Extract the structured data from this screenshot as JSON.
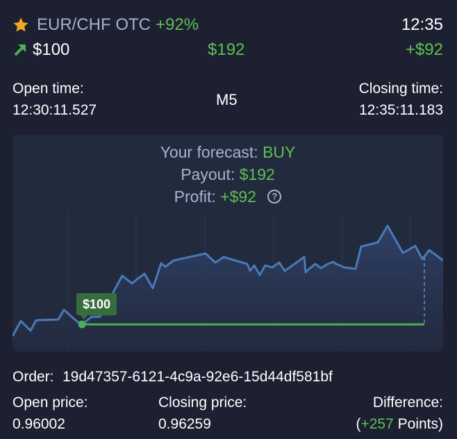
{
  "header": {
    "pair": "EUR/CHF OTC",
    "payout_pct": "+92%",
    "time": "12:35",
    "amount": "$100",
    "payout_amount": "$192",
    "profit": "+$92"
  },
  "timing": {
    "open_label": "Open time:",
    "open_value": "12:30:11.527",
    "timeframe": "M5",
    "close_label": "Closing time:",
    "close_value": "12:35:11.183"
  },
  "forecast": {
    "forecast_label": "Your forecast:",
    "forecast_value": "BUY",
    "payout_label": "Payout:",
    "payout_value": "$192",
    "profit_label": "Profit:",
    "profit_value": "+$92"
  },
  "chart": {
    "entry_badge": "$100",
    "colors": {
      "line": "#4a7ab8",
      "fill": "#2b3a5c",
      "entry": "#4caf50"
    }
  },
  "details": {
    "order_label": "Order:",
    "order_id": "19d47357-6121-4c9a-92e6-15d44df581bf",
    "open_price_label": "Open price:",
    "open_price": "0.96002",
    "close_price_label": "Closing price:",
    "close_price": "0.96259",
    "difference_label": "Difference:",
    "difference_open": "(",
    "difference_value": "+257",
    "difference_unit": "Points)"
  },
  "icons": {
    "favorite": "star-icon",
    "direction": "arrow-up-right-icon",
    "help": "question-circle-icon"
  }
}
